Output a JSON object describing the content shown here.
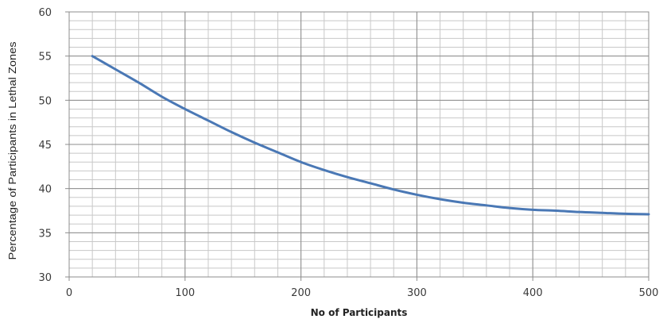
{
  "chart_data": {
    "type": "line",
    "title": "",
    "xlabel": "No of Participants",
    "ylabel": "Percentage of Participants in Lethal Zones",
    "xlim": [
      0,
      500
    ],
    "ylim": [
      30,
      60
    ],
    "x_ticks": [
      0,
      100,
      200,
      300,
      400,
      500
    ],
    "x_tick_labels": [
      "0",
      "100",
      "200",
      "300",
      "400",
      "500"
    ],
    "y_ticks": [
      30,
      35,
      40,
      45,
      50,
      55,
      60
    ],
    "y_tick_labels": [
      "30",
      "35",
      "40",
      "45",
      "50",
      "55",
      "60"
    ],
    "grid": true,
    "line_color": "#4a78b5",
    "series": [
      {
        "x": [
          20,
          40,
          60,
          80,
          100,
          120,
          140,
          160,
          180,
          200,
          220,
          240,
          260,
          280,
          300,
          320,
          340,
          360,
          380,
          400,
          420,
          440,
          460,
          480,
          500
        ],
        "y": [
          55.0,
          53.5,
          52.0,
          50.4,
          49.0,
          47.7,
          46.4,
          45.2,
          44.1,
          43.0,
          42.1,
          41.3,
          40.6,
          39.9,
          39.3,
          38.8,
          38.4,
          38.1,
          37.8,
          37.6,
          37.5,
          37.35,
          37.25,
          37.15,
          37.1
        ]
      }
    ]
  }
}
